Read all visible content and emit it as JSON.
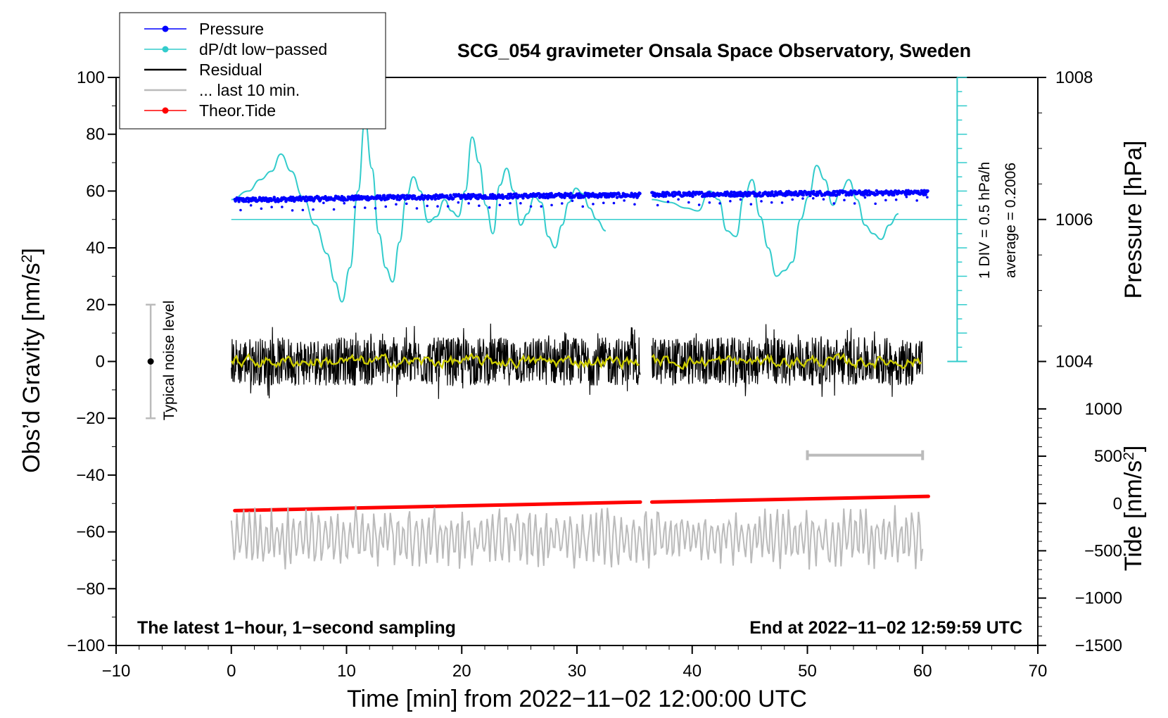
{
  "chart_data": {
    "type": "line",
    "title": "SCG_054 gravimeter Onsala Space Observatory, Sweden",
    "xlabel": "Time [min] from 2022−11−02 12:00:00 UTC",
    "ylabel_left": "Obs’d Gravity [nm/s²]",
    "ylabel_left_base": "Obs’d Gravity [nm/s",
    "ylabel_left_sup": "2",
    "ylabel_left_close": "]",
    "ylabel_right_pressure": "Pressure [hPa]",
    "ylabel_right_tide_base": "Tide [nm/s",
    "ylabel_right_tide_sup": "2",
    "ylabel_right_tide_close": "]",
    "xlim": [
      -10,
      70
    ],
    "ylim_left": [
      -100,
      100
    ],
    "x_ticks": [
      "−10",
      "0",
      "10",
      "20",
      "30",
      "40",
      "50",
      "60",
      "70"
    ],
    "x_tick_values": [
      -10,
      0,
      10,
      20,
      30,
      40,
      50,
      60,
      70
    ],
    "y_ticks_left": [
      "100",
      "80",
      "60",
      "40",
      "20",
      "0",
      "−20",
      "−40",
      "−60",
      "−80",
      "−100"
    ],
    "y_tick_values_left": [
      100,
      80,
      60,
      40,
      20,
      0,
      -20,
      -40,
      -60,
      -80,
      -100
    ],
    "pressure_axis": {
      "ticks": [
        "1008",
        "1006",
        "1004"
      ],
      "tick_values": [
        1008,
        1006,
        1004
      ],
      "gravity_at_1006": 50,
      "gravity_per_hPa": 25
    },
    "tide_axis": {
      "ticks": [
        "1000",
        "500",
        "0",
        "−500",
        "−1000",
        "−1500"
      ],
      "tick_values": [
        1000,
        500,
        0,
        -500,
        -1000,
        -1500
      ],
      "gravity_at_0": -50,
      "gravity_per_1000": 33.3
    },
    "legend": {
      "placement": "top-left",
      "entries": [
        {
          "label": "Pressure",
          "color": "#0000ff",
          "marker": "dot"
        },
        {
          "label": "dP/dt low−passed",
          "color": "#33cccc",
          "marker": "dot"
        },
        {
          "label": "Residual",
          "color": "#000000",
          "marker": "none"
        },
        {
          "label": "... last 10 min.",
          "color": "#bbbbbb",
          "marker": "none"
        },
        {
          "label": "Theor.Tide",
          "color": "#ff0000",
          "marker": "dot"
        }
      ]
    },
    "annotations": {
      "bottom_left": "The latest 1−hour, 1−second sampling",
      "bottom_right": "End at 2022−11−02 12:59:59 UTC",
      "noise_label": "Typical noise level",
      "noise_bar": {
        "x": -7,
        "center": 0,
        "low": -20,
        "high": 20
      },
      "div_label": "1 DIV = 0.5 hPa/h",
      "average_label": "average = 0.2006",
      "ten_min_bar": {
        "x_start": 50,
        "x_end": 60,
        "y": -33
      },
      "dpdt_scale": {
        "x": 63,
        "y_low": 0,
        "y_high": 100,
        "baseline": 50
      }
    },
    "series": [
      {
        "name": "Pressure",
        "color": "#0000ff",
        "segments": [
          [
            0.3,
            35.5
          ],
          [
            36.5,
            60.5
          ]
        ],
        "x": [
          0.3,
          10,
          20,
          30,
          35.5,
          36.5,
          45,
          60.5
        ],
        "y": [
          56.8,
          57.5,
          58.0,
          58.5,
          58.5,
          58.8,
          59.0,
          59.5
        ]
      },
      {
        "name": "dP/dt low-passed",
        "color": "#33cccc",
        "x": [
          0,
          1.5,
          2.5,
          3.5,
          4.3,
          5.2,
          6.2,
          7.3,
          8.3,
          9.0,
          9.6,
          10.3,
          11.0,
          11.6,
          12.2,
          12.8,
          13.4,
          14.0,
          14.6,
          15.2,
          15.8,
          16.4,
          17.1,
          17.8,
          18.5,
          19.1,
          19.7,
          20.3,
          20.9,
          21.5,
          22.1,
          22.7,
          23.3,
          23.9,
          24.5,
          25.1,
          25.7,
          26.3,
          26.9,
          27.5,
          28.1,
          28.7,
          29.3,
          29.9,
          30.5,
          31.1,
          31.7,
          32.5,
          36.5,
          38.0,
          39.5,
          40.5,
          41.5,
          42.3,
          43.0,
          43.8,
          44.5,
          45.2,
          45.9,
          46.6,
          47.3,
          48.0,
          48.7,
          49.4,
          50.1,
          50.8,
          51.5,
          52.2,
          52.9,
          53.6,
          54.3,
          55.0,
          55.7,
          56.4,
          57.1,
          57.9
        ],
        "y": [
          57,
          60,
          64,
          67,
          73,
          67,
          58,
          48,
          38,
          28,
          21,
          33,
          60,
          85,
          68,
          45,
          33,
          28,
          42,
          58,
          65,
          60,
          49,
          51,
          57,
          53,
          51,
          60,
          79,
          70,
          55,
          45,
          62,
          68,
          60,
          48,
          52,
          58,
          56,
          44,
          40,
          48,
          56,
          61,
          59,
          54,
          50,
          46,
          57,
          56,
          54,
          53,
          60,
          57,
          46,
          44,
          58,
          64,
          51,
          40,
          30,
          32,
          35,
          50,
          58,
          69,
          64,
          55,
          60,
          64,
          57,
          48,
          45,
          43,
          48,
          52
        ]
      },
      {
        "name": "Residual",
        "color": "#000000",
        "segments": [
          [
            0,
            35.5
          ],
          [
            36.5,
            60
          ]
        ],
        "center": 0,
        "amplitude": 10
      },
      {
        "name": "Residual smoothed",
        "color": "#cccc00",
        "segments": [
          [
            0,
            35.5
          ],
          [
            36.5,
            60
          ]
        ],
        "center": 0,
        "amplitude": 2
      },
      {
        "name": "Theor.Tide",
        "color": "#ff0000",
        "segments": [
          [
            0.3,
            35.5
          ],
          [
            36.5,
            60.5
          ]
        ],
        "x": [
          0.3,
          35.5,
          36.5,
          60.5
        ],
        "y": [
          -52.5,
          -49.5,
          -49.5,
          -47.5
        ]
      },
      {
        "name": "... last 10 min.",
        "color": "#bbbbbb",
        "x_range": [
          0,
          60
        ],
        "center": -62,
        "amplitude": 9
      }
    ]
  }
}
